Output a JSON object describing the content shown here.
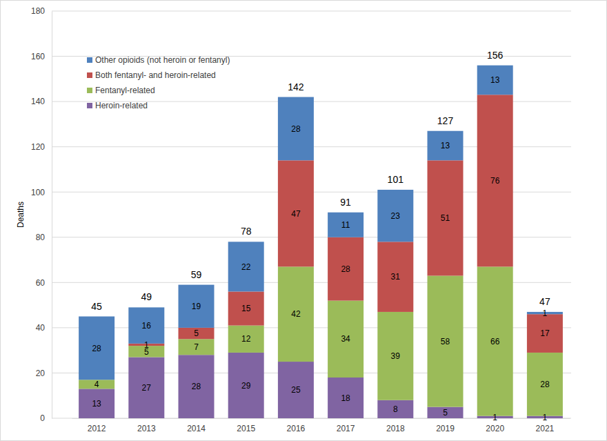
{
  "chart_data": {
    "type": "bar",
    "stacked": true,
    "data_labels": true,
    "grid": true,
    "legend": "upper-left",
    "y_label": "Deaths",
    "categories": [
      "2012",
      "2013",
      "2014",
      "2015",
      "2016",
      "2017",
      "2018",
      "2019",
      "2020",
      "2021"
    ],
    "series": [
      {
        "name": "Heroin-related",
        "color": "#8064a2",
        "values": [
          13,
          27,
          28,
          29,
          25,
          18,
          8,
          5,
          1,
          1
        ]
      },
      {
        "name": "Fentanyl-related",
        "color": "#9bbb59",
        "values": [
          4,
          5,
          7,
          12,
          42,
          34,
          39,
          58,
          66,
          28
        ]
      },
      {
        "name": "Both fentanyl- and heroin-related",
        "color": "#c0504d",
        "values": [
          null,
          1,
          5,
          15,
          47,
          28,
          31,
          51,
          76,
          17
        ]
      },
      {
        "name": "Other opioids (not heroin or fentanyl)",
        "color": "#4f81bd",
        "values": [
          28,
          16,
          19,
          22,
          28,
          11,
          23,
          13,
          13,
          1
        ]
      }
    ],
    "totals": [
      45,
      49,
      59,
      78,
      142,
      91,
      101,
      127,
      156,
      47
    ],
    "ylim": [
      0,
      180
    ],
    "yticks": [
      0,
      20,
      40,
      60,
      80,
      100,
      120,
      140,
      160,
      180
    ]
  }
}
